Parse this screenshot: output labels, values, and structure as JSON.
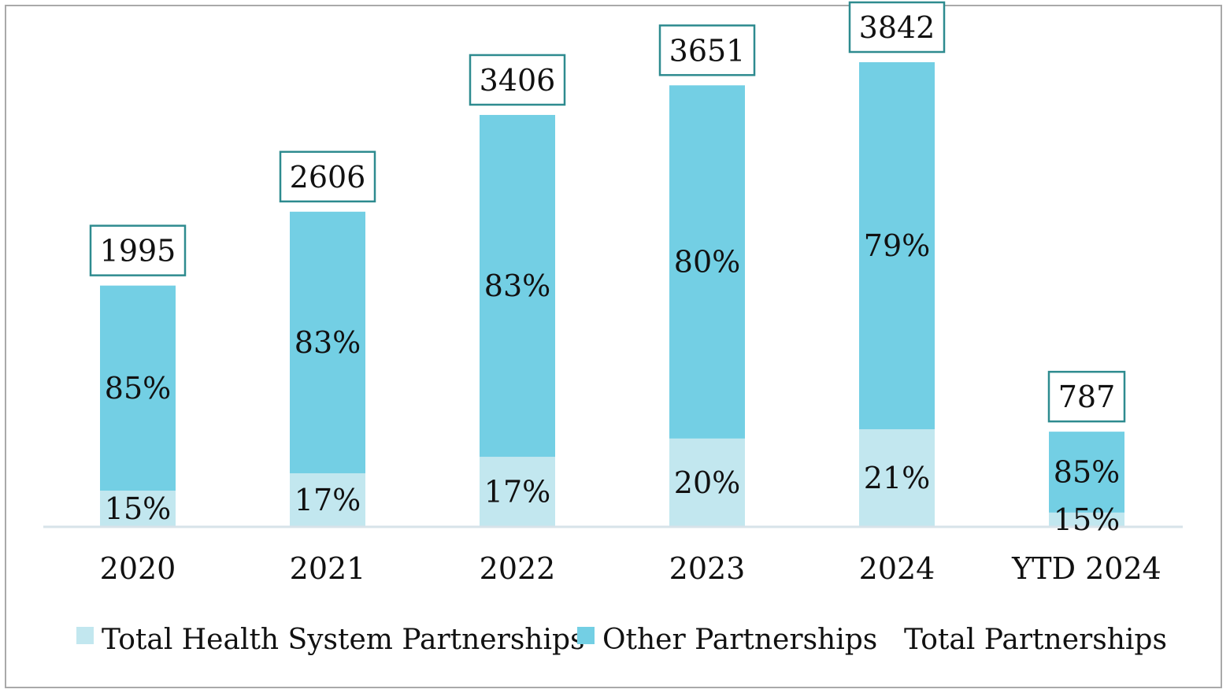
{
  "chart_data": {
    "type": "bar",
    "stacked": true,
    "categories": [
      "2020",
      "2021",
      "2022",
      "2023",
      "2024",
      "YTD 2024"
    ],
    "totals": [
      1995,
      2606,
      3406,
      3651,
      3842,
      787
    ],
    "series": [
      {
        "name": "Total Health System Partnerships",
        "percent_labels": [
          "15%",
          "17%",
          "17%",
          "20%",
          "21%",
          "15%"
        ],
        "fractions": [
          0.15,
          0.17,
          0.17,
          0.2,
          0.21,
          0.15
        ],
        "color": "#c2e7ef"
      },
      {
        "name": "Other Partnerships",
        "percent_labels": [
          "85%",
          "83%",
          "83%",
          "80%",
          "79%",
          "85%"
        ],
        "fractions": [
          0.85,
          0.83,
          0.83,
          0.8,
          0.79,
          0.85
        ],
        "color": "#73cfe4"
      }
    ],
    "total_series_name": "Total Partnerships",
    "total_box_border_color": "#2e8b8f",
    "baseline_color": "#d7e3e9",
    "ylim": [
      0,
      3842
    ],
    "grid": false,
    "legend_position": "bottom"
  }
}
